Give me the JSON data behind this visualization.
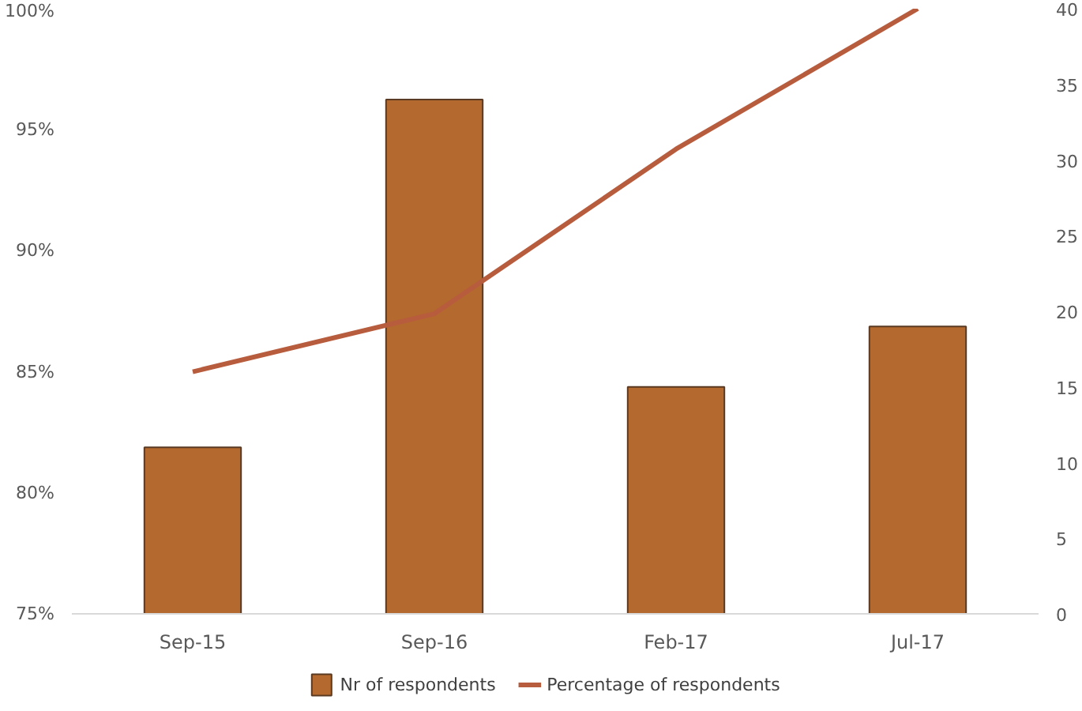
{
  "chart_data": {
    "type": "bar",
    "categories": [
      "Sep-15",
      "Sep-16",
      "Feb-17",
      "Jul-17"
    ],
    "series": [
      {
        "name": "Nr of respondents",
        "axis": "y2",
        "color": "#b4692e",
        "values": [
          11,
          34,
          15,
          19
        ]
      },
      {
        "name": "Percentage of respondents",
        "type": "line",
        "color": "#b85c3e",
        "values": [
          85,
          87.4,
          94.2,
          100
        ]
      }
    ],
    "ylim": [
      75,
      100
    ],
    "yticks": [
      {
        "value": 75,
        "label": "75%"
      },
      {
        "value": 80,
        "label": "80%"
      },
      {
        "value": 85,
        "label": "85%"
      },
      {
        "value": 90,
        "label": "90%"
      },
      {
        "value": 95,
        "label": "95%"
      },
      {
        "value": 100,
        "label": "100%"
      }
    ],
    "y2lim": [
      0,
      40
    ],
    "y2ticks": [
      0,
      5,
      10,
      15,
      20,
      25,
      30,
      35,
      40
    ],
    "legend": "bottom",
    "grid": false,
    "marker": "none",
    "line_style": "solid"
  }
}
